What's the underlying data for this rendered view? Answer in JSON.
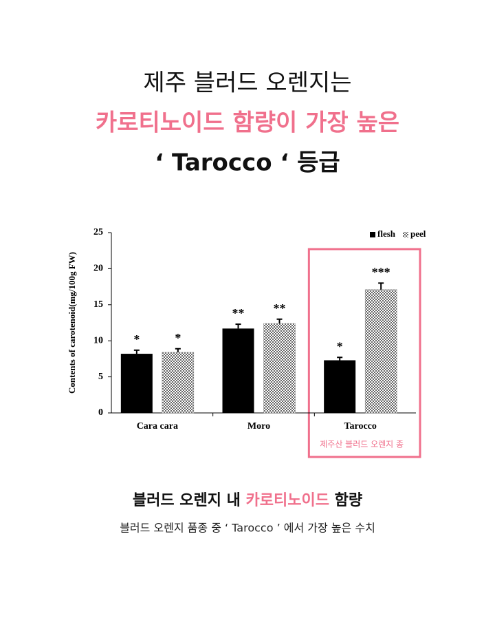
{
  "header": {
    "lines": [
      "제주 블러드 오렌지는",
      "카로티노이드 함량이 가장 높은",
      "‘ Tarocco ‘ 등급"
    ]
  },
  "chart_data": {
    "type": "bar",
    "ylabel": "Contents of carotenoid(mg/100g FW)",
    "categories": [
      "Cara cara",
      "Moro",
      "Tarocco"
    ],
    "series": [
      {
        "name": "flesh",
        "color": "#000000",
        "values": [
          8.2,
          11.7,
          7.3
        ],
        "errors": [
          0.5,
          0.6,
          0.4
        ],
        "significance": [
          "*",
          "**",
          "*"
        ]
      },
      {
        "name": "peel",
        "color": "#666666",
        "pattern": "checker",
        "values": [
          8.4,
          12.4,
          17.1
        ],
        "errors": [
          0.5,
          0.6,
          0.9
        ],
        "significance": [
          "*",
          "**",
          "***"
        ]
      }
    ],
    "ylim": [
      0,
      25
    ],
    "yticks": [
      0,
      5,
      10,
      15,
      20,
      25
    ],
    "legend": "top-right",
    "highlight": {
      "category": 2,
      "label": "제주산 블러드 오렌지 종"
    }
  },
  "caption": {
    "title": [
      "블러드 오렌지 내 ",
      "카로티노이드",
      " 함량"
    ],
    "subtitle": "블러드 오렌지 품종 중 ‘ Tarocco ’ 에서 가장 높은 수치"
  }
}
